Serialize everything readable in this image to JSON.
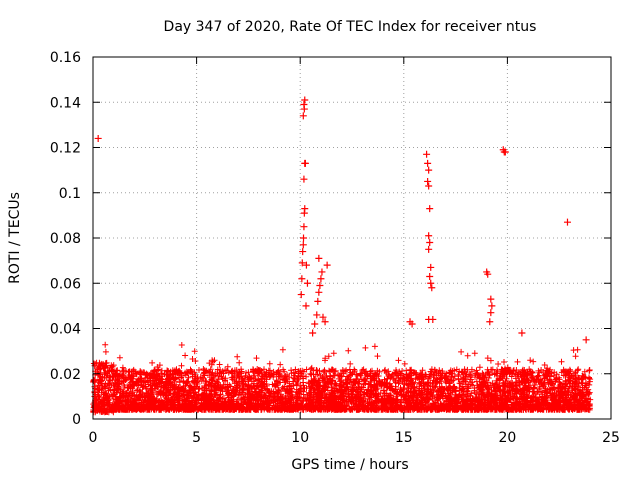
{
  "chart_data": {
    "type": "scatter",
    "title": "Day 347 of 2020, Rate Of TEC Index for receiver ntus",
    "xlabel": "GPS time / hours",
    "ylabel": "ROTI / TECUs",
    "xlim": [
      0,
      25
    ],
    "ylim": [
      0,
      0.16
    ],
    "xticks": [
      0,
      5,
      10,
      15,
      20,
      25
    ],
    "xtick_labels": [
      "0",
      "5",
      "10",
      "15",
      "20",
      "25"
    ],
    "yticks": [
      0,
      0.02,
      0.04,
      0.06,
      0.08,
      0.1,
      0.12,
      0.14,
      0.16
    ],
    "ytick_labels": [
      "0",
      "0.02",
      "0.04",
      "0.06",
      "0.08",
      "0.1",
      "0.12",
      "0.14",
      "0.16"
    ],
    "grid": true,
    "marker": "+",
    "color": "#ff0000",
    "series": [
      {
        "name": "ROTI",
        "points": [
          [
            0.25,
            0.124
          ],
          [
            10.05,
            0.055
          ],
          [
            10.08,
            0.062
          ],
          [
            10.1,
            0.069
          ],
          [
            10.12,
            0.074
          ],
          [
            10.15,
            0.077
          ],
          [
            10.16,
            0.08
          ],
          [
            10.18,
            0.085
          ],
          [
            10.2,
            0.091
          ],
          [
            10.22,
            0.093
          ],
          [
            10.18,
            0.106
          ],
          [
            10.22,
            0.113
          ],
          [
            10.25,
            0.113
          ],
          [
            10.15,
            0.134
          ],
          [
            10.2,
            0.137
          ],
          [
            10.18,
            0.139
          ],
          [
            10.22,
            0.141
          ],
          [
            10.3,
            0.068
          ],
          [
            10.35,
            0.06
          ],
          [
            10.28,
            0.05
          ],
          [
            10.6,
            0.038
          ],
          [
            10.7,
            0.042
          ],
          [
            10.8,
            0.046
          ],
          [
            10.85,
            0.052
          ],
          [
            10.9,
            0.056
          ],
          [
            10.95,
            0.059
          ],
          [
            11.0,
            0.062
          ],
          [
            11.05,
            0.065
          ],
          [
            10.9,
            0.071
          ],
          [
            11.3,
            0.068
          ],
          [
            11.1,
            0.045
          ],
          [
            11.2,
            0.043
          ],
          [
            15.3,
            0.043
          ],
          [
            15.4,
            0.042
          ],
          [
            16.1,
            0.117
          ],
          [
            16.15,
            0.113
          ],
          [
            16.2,
            0.11
          ],
          [
            16.15,
            0.105
          ],
          [
            16.2,
            0.103
          ],
          [
            16.25,
            0.093
          ],
          [
            16.2,
            0.081
          ],
          [
            16.25,
            0.078
          ],
          [
            16.2,
            0.075
          ],
          [
            16.3,
            0.067
          ],
          [
            16.25,
            0.063
          ],
          [
            16.3,
            0.06
          ],
          [
            16.35,
            0.058
          ],
          [
            16.2,
            0.044
          ],
          [
            16.4,
            0.044
          ],
          [
            19.0,
            0.065
          ],
          [
            19.05,
            0.064
          ],
          [
            19.2,
            0.053
          ],
          [
            19.25,
            0.05
          ],
          [
            19.2,
            0.047
          ],
          [
            19.15,
            0.043
          ],
          [
            19.8,
            0.119
          ],
          [
            19.85,
            0.118
          ],
          [
            19.9,
            0.118
          ],
          [
            22.9,
            0.087
          ],
          [
            20.7,
            0.038
          ],
          [
            23.8,
            0.035
          ]
        ]
      }
    ]
  }
}
